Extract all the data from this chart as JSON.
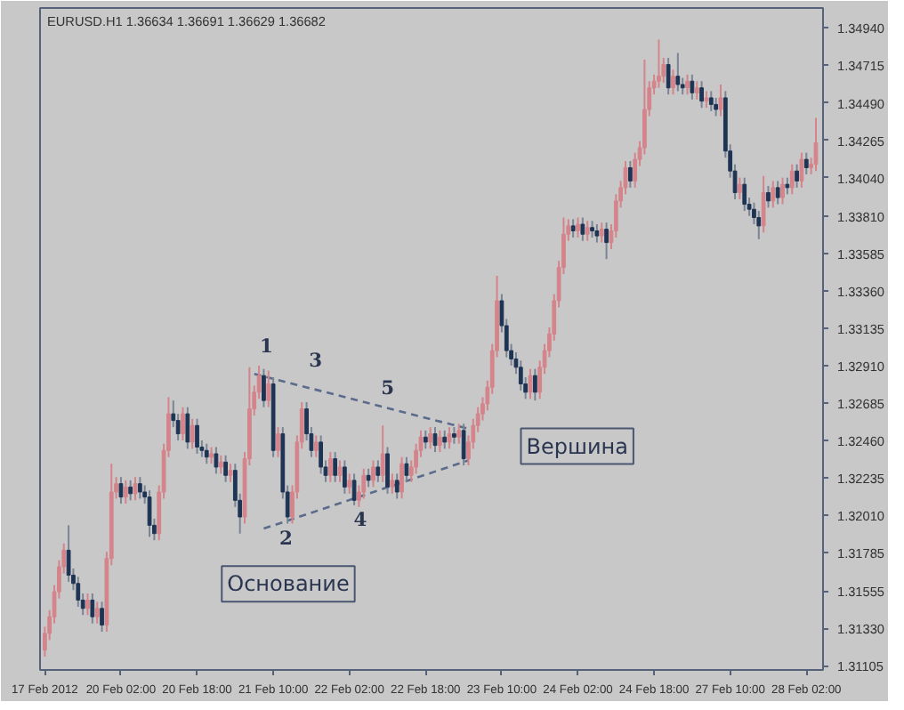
{
  "chart_data": {
    "type": "candlestick",
    "title": "EURUSD.H1  1.36634 1.36691 1.36629 1.36682",
    "colors": [
      "#d4848a",
      "#d4848a",
      "#d4848a",
      "#d4848a",
      "#d4848a",
      "#1e3454",
      "#1e3454",
      "#1e3454",
      "#1e3454",
      "#d4848a",
      "#1e3454",
      "#d4848a",
      "#1e3454",
      "#d4848a",
      "#d4848a",
      "#d4848a",
      "#1e3454",
      "#d4848a",
      "#1e3454",
      "#d4848a",
      "#1e3454",
      "#1e3454",
      "#1e3454",
      "#1e3454",
      "#d4848a",
      "#d4848a",
      "#d4848a",
      "#1e3454",
      "#1e3454",
      "#d4848a",
      "#1e3454",
      "#d4848a",
      "#1e3454",
      "#1e3454",
      "#1e3454",
      "#d4848a",
      "#1e3454",
      "#d4848a",
      "#1e3454",
      "#d4848a",
      "#1e3454",
      "#1e3454",
      "#d4848a",
      "#d4848a",
      "#d4848a",
      "#d4848a",
      "#1e3454",
      "#d4848a",
      "#1e3454",
      "#d4848a",
      "#1e3454",
      "#1e3454",
      "#d4848a",
      "#d4848a",
      "#d4848a",
      "#1e3454",
      "#1e3454",
      "#d4848a",
      "#1e3454",
      "#1e3454",
      "#d4848a",
      "#1e3454",
      "#d4848a",
      "#1e3454",
      "#d4848a",
      "#1e3454",
      "#d4848a",
      "#d4848a",
      "#1e3454",
      "#d4848a",
      "#1e3454",
      "#d4848a",
      "#1e3454",
      "#d4848a",
      "#1e3454",
      "#d4848a",
      "#1e3454",
      "#d4848a",
      "#d4848a",
      "#d4848a",
      "#1e3454",
      "#d4848a",
      "#1e3454",
      "#d4848a",
      "#1e3454",
      "#d4848a",
      "#1e3454",
      "#d4848a",
      "#1e3454",
      "#d4848a",
      "#d4848a",
      "#d4848a",
      "#d4848a",
      "#d4848a",
      "#d4848a",
      "#d4848a",
      "#1e3454",
      "#1e3454",
      "#1e3454",
      "#1e3454",
      "#1e3454",
      "#1e3454",
      "#d4848a",
      "#1e3454",
      "#d4848a",
      "#d4848a",
      "#d4848a",
      "#d4848a",
      "#d4848a",
      "#d4848a",
      "#d4848a",
      "#1e3454",
      "#d4848a",
      "#1e3454",
      "#d4848a",
      "#1e3454",
      "#1e3454",
      "#d4848a",
      "#1e3454",
      "#d4848a",
      "#d4848a",
      "#d4848a",
      "#d4848a",
      "#1e3454",
      "#d4848a",
      "#d4848a",
      "#d4848a",
      "#d4848a",
      "#d4848a",
      "#d4848a",
      "#d4848a",
      "#1e3454",
      "#d4848a",
      "#1e3454",
      "#1e3454",
      "#d4848a",
      "#1e3454",
      "#d4848a",
      "#1e3454",
      "#d4848a",
      "#1e3454",
      "#1e3454",
      "#d4848a",
      "#1e3454",
      "#1e3454",
      "#1e3454",
      "#d4848a",
      "#1e3454",
      "#1e3454",
      "#1e3454",
      "#1e3454",
      "#d4848a",
      "#1e3454",
      "#d4848a",
      "#1e3454",
      "#d4848a",
      "#1e3454",
      "#d4848a",
      "#1e3454",
      "#d4848a",
      "#1e3454",
      "#d4848a",
      "#d4848a"
    ],
    "categories": [
      "17 Feb 2012",
      null,
      null,
      null,
      null,
      null,
      null,
      null,
      null,
      null,
      null,
      null,
      null,
      null,
      null,
      null,
      "20 Feb 02:00",
      null,
      null,
      null,
      null,
      null,
      null,
      null,
      null,
      null,
      null,
      null,
      null,
      null,
      null,
      null,
      "20 Feb 18:00",
      null,
      null,
      null,
      null,
      null,
      null,
      null,
      null,
      null,
      null,
      null,
      null,
      null,
      null,
      null,
      "21 Feb 10:00",
      null,
      null,
      null,
      null,
      null,
      null,
      null,
      null,
      null,
      null,
      null,
      null,
      null,
      null,
      null,
      "22 Feb 02:00",
      null,
      null,
      null,
      null,
      null,
      null,
      null,
      null,
      null,
      null,
      null,
      null,
      null,
      null,
      null,
      "22 Feb 18:00",
      null,
      null,
      null,
      null,
      null,
      null,
      null,
      null,
      null,
      null,
      null,
      null,
      null,
      null,
      null,
      "23 Feb 10:00",
      null,
      null,
      null,
      null,
      null,
      null,
      null,
      null,
      null,
      null,
      null,
      null,
      null,
      null,
      null,
      "24 Feb 02:00",
      null,
      null,
      null,
      null,
      null,
      null,
      null,
      null,
      null,
      null,
      null,
      null,
      null,
      null,
      null,
      "24 Feb 18:00",
      null,
      null,
      null,
      null,
      null,
      null,
      null,
      null,
      null,
      null,
      null,
      null,
      null,
      null,
      null,
      "27 Feb 10:00",
      null,
      null,
      null,
      null,
      null,
      null,
      null,
      null,
      null,
      null,
      null,
      null,
      null,
      null,
      null,
      "28 Feb 02:00",
      null,
      null
    ],
    "ohlc": [
      [
        1.312,
        1.3134,
        1.3116,
        1.313
      ],
      [
        1.313,
        1.3144,
        1.3126,
        1.314
      ],
      [
        1.314,
        1.3159,
        1.3136,
        1.3155
      ],
      [
        1.3155,
        1.3174,
        1.3151,
        1.317
      ],
      [
        1.317,
        1.3184,
        1.3166,
        1.318
      ],
      [
        1.318,
        1.3195,
        1.3161,
        1.3165
      ],
      [
        1.3165,
        1.3169,
        1.3156,
        1.316
      ],
      [
        1.316,
        1.3164,
        1.3146,
        1.315
      ],
      [
        1.315,
        1.3154,
        1.3141,
        1.3145
      ],
      [
        1.3145,
        1.3154,
        1.3141,
        1.315
      ],
      [
        1.315,
        1.3154,
        1.3136,
        1.314
      ],
      [
        1.314,
        1.3149,
        1.3136,
        1.3145
      ],
      [
        1.3145,
        1.3149,
        1.3131,
        1.3135
      ],
      [
        1.3135,
        1.3179,
        1.3131,
        1.3175
      ],
      [
        1.3175,
        1.3232,
        1.3171,
        1.3215
      ],
      [
        1.3215,
        1.3224,
        1.3211,
        1.322
      ],
      [
        1.322,
        1.3224,
        1.3208,
        1.3212
      ],
      [
        1.3212,
        1.3222,
        1.3208,
        1.3218
      ],
      [
        1.3218,
        1.3222,
        1.321,
        1.3214
      ],
      [
        1.3214,
        1.3224,
        1.321,
        1.322
      ],
      [
        1.322,
        1.3224,
        1.3211,
        1.3215
      ],
      [
        1.3215,
        1.3219,
        1.3208,
        1.3212
      ],
      [
        1.3212,
        1.3216,
        1.3188,
        1.3195
      ],
      [
        1.3195,
        1.3199,
        1.3186,
        1.319
      ],
      [
        1.319,
        1.3219,
        1.3186,
        1.3215
      ],
      [
        1.3215,
        1.3244,
        1.3211,
        1.324
      ],
      [
        1.324,
        1.3272,
        1.3236,
        1.3262
      ],
      [
        1.3262,
        1.327,
        1.3254,
        1.3258
      ],
      [
        1.3258,
        1.3262,
        1.3246,
        1.325
      ],
      [
        1.325,
        1.3266,
        1.3246,
        1.3262
      ],
      [
        1.3262,
        1.3266,
        1.3241,
        1.3245
      ],
      [
        1.3245,
        1.3259,
        1.3241,
        1.3255
      ],
      [
        1.3255,
        1.3259,
        1.3238,
        1.3242
      ],
      [
        1.3242,
        1.3246,
        1.3236,
        1.324
      ],
      [
        1.324,
        1.3244,
        1.3232,
        1.3236
      ],
      [
        1.3236,
        1.3242,
        1.3232,
        1.3238
      ],
      [
        1.3238,
        1.3242,
        1.3226,
        1.323
      ],
      [
        1.323,
        1.3237,
        1.3226,
        1.3233
      ],
      [
        1.3233,
        1.3237,
        1.3221,
        1.3225
      ],
      [
        1.3225,
        1.3232,
        1.3221,
        1.3228
      ],
      [
        1.3228,
        1.3232,
        1.3206,
        1.321
      ],
      [
        1.321,
        1.3214,
        1.319,
        1.32
      ],
      [
        1.32,
        1.3239,
        1.3196,
        1.3235
      ],
      [
        1.3235,
        1.329,
        1.3231,
        1.3265
      ],
      [
        1.3265,
        1.3279,
        1.3261,
        1.3275
      ],
      [
        1.3275,
        1.3291,
        1.3271,
        1.3285
      ],
      [
        1.3285,
        1.3289,
        1.3266,
        1.327
      ],
      [
        1.327,
        1.3288,
        1.3266,
        1.328
      ],
      [
        1.328,
        1.3284,
        1.3236,
        1.324
      ],
      [
        1.324,
        1.3254,
        1.3236,
        1.325
      ],
      [
        1.325,
        1.3254,
        1.3211,
        1.3215
      ],
      [
        1.3215,
        1.3219,
        1.3196,
        1.32
      ],
      [
        1.32,
        1.3219,
        1.3196,
        1.3215
      ],
      [
        1.3215,
        1.3249,
        1.3211,
        1.3245
      ],
      [
        1.3245,
        1.3269,
        1.3241,
        1.3265
      ],
      [
        1.3265,
        1.3269,
        1.3246,
        1.325
      ],
      [
        1.325,
        1.3254,
        1.3236,
        1.324
      ],
      [
        1.324,
        1.3249,
        1.3236,
        1.3245
      ],
      [
        1.3245,
        1.3249,
        1.3226,
        1.323
      ],
      [
        1.323,
        1.3234,
        1.3221,
        1.3225
      ],
      [
        1.3225,
        1.3239,
        1.3221,
        1.3235
      ],
      [
        1.3235,
        1.3239,
        1.3221,
        1.3225
      ],
      [
        1.3225,
        1.3234,
        1.3221,
        1.323
      ],
      [
        1.323,
        1.3234,
        1.3214,
        1.3218
      ],
      [
        1.3218,
        1.3226,
        1.3214,
        1.3222
      ],
      [
        1.3222,
        1.3226,
        1.3207,
        1.321
      ],
      [
        1.321,
        1.3219,
        1.3206,
        1.3215
      ],
      [
        1.3215,
        1.3229,
        1.3211,
        1.3225
      ],
      [
        1.3225,
        1.3229,
        1.3218,
        1.3222
      ],
      [
        1.3222,
        1.3234,
        1.3218,
        1.323
      ],
      [
        1.323,
        1.3234,
        1.3221,
        1.3225
      ],
      [
        1.3225,
        1.3255,
        1.3221,
        1.3238
      ],
      [
        1.3238,
        1.3242,
        1.3214,
        1.3218
      ],
      [
        1.3218,
        1.3226,
        1.3214,
        1.3222
      ],
      [
        1.3222,
        1.3226,
        1.3211,
        1.3215
      ],
      [
        1.3215,
        1.3236,
        1.3211,
        1.3232
      ],
      [
        1.3232,
        1.3236,
        1.3221,
        1.3225
      ],
      [
        1.3225,
        1.3234,
        1.3221,
        1.323
      ],
      [
        1.323,
        1.3244,
        1.3226,
        1.324
      ],
      [
        1.324,
        1.3252,
        1.3236,
        1.3248
      ],
      [
        1.3248,
        1.3252,
        1.3241,
        1.3245
      ],
      [
        1.3245,
        1.3254,
        1.3241,
        1.325
      ],
      [
        1.325,
        1.3254,
        1.3239,
        1.3243
      ],
      [
        1.3243,
        1.3252,
        1.3239,
        1.3248
      ],
      [
        1.3248,
        1.3252,
        1.3241,
        1.3245
      ],
      [
        1.3245,
        1.3254,
        1.3241,
        1.325
      ],
      [
        1.325,
        1.3254,
        1.3244,
        1.3248
      ],
      [
        1.3248,
        1.3256,
        1.3244,
        1.3252
      ],
      [
        1.3252,
        1.3256,
        1.3231,
        1.3235
      ],
      [
        1.3235,
        1.3249,
        1.3231,
        1.3245
      ],
      [
        1.3245,
        1.3259,
        1.3241,
        1.3255
      ],
      [
        1.3255,
        1.3266,
        1.3251,
        1.3262
      ],
      [
        1.3262,
        1.3272,
        1.3258,
        1.3268
      ],
      [
        1.3268,
        1.3282,
        1.3264,
        1.3278
      ],
      [
        1.3278,
        1.3304,
        1.3274,
        1.33
      ],
      [
        1.33,
        1.3345,
        1.3296,
        1.333
      ],
      [
        1.333,
        1.3334,
        1.3311,
        1.3315
      ],
      [
        1.3315,
        1.3319,
        1.3296,
        1.33
      ],
      [
        1.33,
        1.3304,
        1.3291,
        1.3295
      ],
      [
        1.3295,
        1.3299,
        1.3286,
        1.329
      ],
      [
        1.329,
        1.3294,
        1.3276,
        1.328
      ],
      [
        1.328,
        1.3284,
        1.3271,
        1.3275
      ],
      [
        1.3275,
        1.3289,
        1.3271,
        1.3285
      ],
      [
        1.3285,
        1.3289,
        1.327,
        1.3275
      ],
      [
        1.3275,
        1.3294,
        1.3271,
        1.329
      ],
      [
        1.329,
        1.3304,
        1.3286,
        1.33
      ],
      [
        1.33,
        1.3314,
        1.3296,
        1.331
      ],
      [
        1.331,
        1.3334,
        1.3306,
        1.333
      ],
      [
        1.333,
        1.3354,
        1.3326,
        1.335
      ],
      [
        1.335,
        1.338,
        1.3346,
        1.337
      ],
      [
        1.337,
        1.3379,
        1.3366,
        1.3375
      ],
      [
        1.3375,
        1.3379,
        1.3368,
        1.3372
      ],
      [
        1.3372,
        1.338,
        1.3368,
        1.3376
      ],
      [
        1.3376,
        1.338,
        1.3366,
        1.337
      ],
      [
        1.337,
        1.3378,
        1.3366,
        1.3374
      ],
      [
        1.3374,
        1.3378,
        1.3368,
        1.3372
      ],
      [
        1.3372,
        1.3376,
        1.3365,
        1.3369
      ],
      [
        1.3369,
        1.3377,
        1.3365,
        1.3373
      ],
      [
        1.3373,
        1.3377,
        1.3355,
        1.3365
      ],
      [
        1.3365,
        1.3376,
        1.3361,
        1.3372
      ],
      [
        1.3372,
        1.3394,
        1.3368,
        1.339
      ],
      [
        1.339,
        1.3402,
        1.3386,
        1.3398
      ],
      [
        1.3398,
        1.3414,
        1.3394,
        1.341
      ],
      [
        1.341,
        1.3414,
        1.3398,
        1.3402
      ],
      [
        1.3402,
        1.3419,
        1.3398,
        1.3415
      ],
      [
        1.3415,
        1.3426,
        1.3411,
        1.3422
      ],
      [
        1.3422,
        1.3475,
        1.3418,
        1.3445
      ],
      [
        1.3445,
        1.3462,
        1.3441,
        1.3458
      ],
      [
        1.3458,
        1.3466,
        1.3454,
        1.3462
      ],
      [
        1.3462,
        1.3487,
        1.3458,
        1.3465
      ],
      [
        1.3465,
        1.3476,
        1.3461,
        1.3472
      ],
      [
        1.3472,
        1.3476,
        1.3454,
        1.3458
      ],
      [
        1.3458,
        1.3469,
        1.3454,
        1.3465
      ],
      [
        1.3465,
        1.3479,
        1.3456,
        1.346
      ],
      [
        1.346,
        1.3464,
        1.3454,
        1.3458
      ],
      [
        1.3458,
        1.3466,
        1.3454,
        1.3462
      ],
      [
        1.3462,
        1.3466,
        1.3451,
        1.3455
      ],
      [
        1.3455,
        1.3462,
        1.3451,
        1.3458
      ],
      [
        1.3458,
        1.3462,
        1.3446,
        1.345
      ],
      [
        1.345,
        1.3456,
        1.3446,
        1.3452
      ],
      [
        1.3452,
        1.3456,
        1.3444,
        1.3448
      ],
      [
        1.3448,
        1.3452,
        1.3441,
        1.3445
      ],
      [
        1.3445,
        1.346,
        1.3441,
        1.3452
      ],
      [
        1.3452,
        1.3456,
        1.3416,
        1.342
      ],
      [
        1.342,
        1.3424,
        1.3404,
        1.3408
      ],
      [
        1.3408,
        1.3412,
        1.3391,
        1.3395
      ],
      [
        1.3395,
        1.3404,
        1.3391,
        1.34
      ],
      [
        1.34,
        1.3404,
        1.3384,
        1.3388
      ],
      [
        1.3388,
        1.3392,
        1.3381,
        1.3385
      ],
      [
        1.3385,
        1.3389,
        1.3376,
        1.338
      ],
      [
        1.338,
        1.3384,
        1.3367,
        1.3375
      ],
      [
        1.3375,
        1.3405,
        1.3371,
        1.3395
      ],
      [
        1.3395,
        1.3399,
        1.3386,
        1.339
      ],
      [
        1.339,
        1.3402,
        1.3386,
        1.3398
      ],
      [
        1.3398,
        1.3402,
        1.3388,
        1.3392
      ],
      [
        1.3392,
        1.3404,
        1.3388,
        1.34
      ],
      [
        1.34,
        1.3404,
        1.3394,
        1.3398
      ],
      [
        1.3398,
        1.3412,
        1.3394,
        1.3408
      ],
      [
        1.3408,
        1.3412,
        1.3398,
        1.3402
      ],
      [
        1.3402,
        1.3419,
        1.3398,
        1.3415
      ],
      [
        1.3415,
        1.3419,
        1.3406,
        1.341
      ],
      [
        1.341,
        1.3416,
        1.3406,
        1.3412
      ],
      [
        1.3412,
        1.344,
        1.3408,
        1.3425
      ]
    ],
    "series": [
      {
        "type": "line",
        "values": [
          null,
          null,
          null,
          null,
          null,
          null,
          null,
          null,
          null,
          null,
          null,
          null,
          null,
          null,
          null,
          null,
          null,
          null,
          null,
          null,
          null,
          null,
          null,
          null,
          null,
          null,
          null,
          null,
          null,
          null,
          null,
          null,
          null,
          null,
          null,
          null,
          null,
          null,
          null,
          null,
          null,
          null,
          null,
          null,
          1.3286,
          null,
          null,
          null,
          null,
          null,
          null,
          null,
          null,
          null,
          null,
          null,
          null,
          null,
          null,
          null,
          null,
          null,
          null,
          null,
          null,
          null,
          null,
          null,
          null,
          null,
          null,
          null,
          null,
          null,
          null,
          null,
          null,
          null,
          null,
          null,
          null,
          null,
          null,
          null,
          null,
          null,
          null,
          null,
          null,
          1.3253,
          null,
          null,
          null,
          null,
          null,
          null,
          null,
          null,
          null,
          null,
          null,
          null,
          null,
          null,
          null,
          null,
          null,
          null,
          null,
          null,
          null,
          null,
          null,
          null,
          null,
          null,
          null,
          null,
          null,
          null,
          null,
          null,
          null,
          null,
          null,
          null,
          null,
          null,
          null,
          null,
          null,
          null,
          null,
          null,
          null,
          null,
          null,
          null,
          null,
          null,
          null,
          null,
          null,
          null,
          null,
          null,
          null,
          null,
          null,
          null,
          null,
          null,
          null,
          null,
          null,
          null,
          null,
          null,
          null,
          null,
          null,
          null,
          null
        ],
        "color": "#5b6b8c",
        "line_style": "dashed"
      },
      {
        "type": "line",
        "values": [
          null,
          null,
          null,
          null,
          null,
          null,
          null,
          null,
          null,
          null,
          null,
          null,
          null,
          null,
          null,
          null,
          null,
          null,
          null,
          null,
          null,
          null,
          null,
          null,
          null,
          null,
          null,
          null,
          null,
          null,
          null,
          null,
          null,
          null,
          null,
          null,
          null,
          null,
          null,
          null,
          null,
          null,
          null,
          null,
          null,
          null,
          1.3193,
          null,
          null,
          null,
          null,
          null,
          null,
          null,
          null,
          null,
          null,
          null,
          null,
          null,
          null,
          null,
          null,
          null,
          null,
          null,
          null,
          null,
          null,
          null,
          null,
          null,
          null,
          null,
          null,
          null,
          null,
          null,
          null,
          null,
          null,
          null,
          null,
          null,
          null,
          null,
          null,
          null,
          null,
          1.3234,
          null,
          null,
          null,
          null,
          null,
          null,
          null,
          null,
          null,
          null,
          null,
          null,
          null,
          null,
          null,
          null,
          null,
          null,
          null,
          null,
          null,
          null,
          null,
          null,
          null,
          null,
          null,
          null,
          null,
          null,
          null,
          null,
          null,
          null,
          null,
          null,
          null,
          null,
          null,
          null,
          null,
          null,
          null,
          null,
          null,
          null,
          null,
          null,
          null,
          null,
          null,
          null,
          null,
          null,
          null,
          null,
          null,
          null,
          null,
          null,
          null,
          null,
          null,
          null,
          null,
          null,
          null,
          null,
          null,
          null,
          null,
          null,
          null
        ],
        "color": "#5b6b8c",
        "line_style": "dashed"
      }
    ],
    "annotations": [
      "1",
      "2",
      "3",
      "4",
      "5",
      "Основание",
      "Вершина"
    ],
    "ylim": [
      1.3108,
      1.3506
    ],
    "yticks": [
      {
        "value": 1.3494,
        "label": "1.34940"
      },
      {
        "value": 1.34715,
        "label": "1.34715"
      },
      {
        "value": 1.3449,
        "label": "1.34490"
      },
      {
        "value": 1.34265,
        "label": "1.34265"
      },
      {
        "value": 1.3404,
        "label": "1.34040"
      },
      {
        "value": 1.3381,
        "label": "1.33810"
      },
      {
        "value": 1.33585,
        "label": "1.33585"
      },
      {
        "value": 1.3336,
        "label": "1.33360"
      },
      {
        "value": 1.33135,
        "label": "1.33135"
      },
      {
        "value": 1.3291,
        "label": "1.32910"
      },
      {
        "value": 1.32685,
        "label": "1.32685"
      },
      {
        "value": 1.3246,
        "label": "1.32460"
      },
      {
        "value": 1.32235,
        "label": "1.32235"
      },
      {
        "value": 1.3201,
        "label": "1.32010"
      },
      {
        "value": 1.31785,
        "label": "1.31785"
      },
      {
        "value": 1.31555,
        "label": "1.31555"
      },
      {
        "value": 1.3133,
        "label": "1.31330"
      },
      {
        "value": 1.31105,
        "label": "1.31105"
      }
    ],
    "grid": false
  }
}
